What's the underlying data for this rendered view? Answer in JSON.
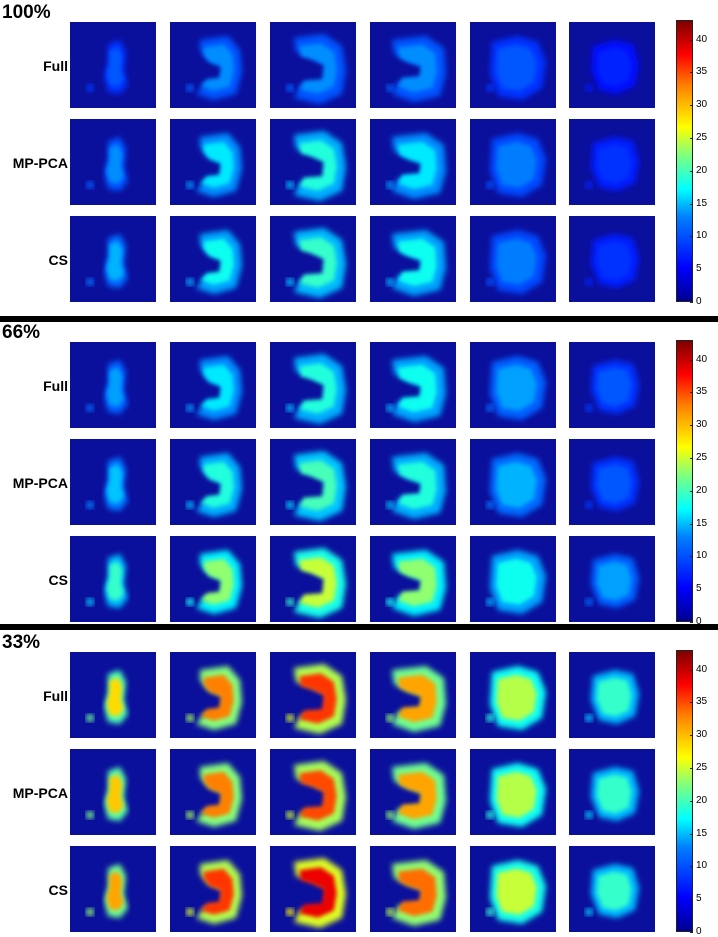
{
  "panels": [
    {
      "label": "100%",
      "rows": [
        "Full",
        "MP-PCA",
        "CS"
      ],
      "intensity": [
        [
          0.1,
          0.16,
          0.16,
          0.16,
          0.1,
          0.04
        ],
        [
          0.16,
          0.26,
          0.32,
          0.26,
          0.14,
          0.06
        ],
        [
          0.2,
          0.3,
          0.34,
          0.3,
          0.14,
          0.06
        ]
      ]
    },
    {
      "label": "66%",
      "rows": [
        "Full",
        "MP-PCA",
        "CS"
      ],
      "intensity": [
        [
          0.18,
          0.26,
          0.32,
          0.3,
          0.18,
          0.1
        ],
        [
          0.22,
          0.32,
          0.36,
          0.32,
          0.2,
          0.1
        ],
        [
          0.34,
          0.44,
          0.5,
          0.44,
          0.3,
          0.18
        ]
      ]
    },
    {
      "label": "33%",
      "rows": [
        "Full",
        "MP-PCA",
        "CS"
      ],
      "intensity": [
        [
          0.6,
          0.7,
          0.78,
          0.66,
          0.48,
          0.34
        ],
        [
          0.62,
          0.7,
          0.76,
          0.66,
          0.48,
          0.34
        ],
        [
          0.66,
          0.78,
          0.86,
          0.72,
          0.5,
          0.34
        ]
      ]
    }
  ],
  "colorbar": {
    "ticks": [
      "0",
      "5",
      "10",
      "15",
      "20",
      "25",
      "30",
      "35",
      "40"
    ],
    "min": 0,
    "max": 43,
    "colormap": "jet"
  },
  "colors": {
    "background_blue": "#0a0f9c"
  }
}
